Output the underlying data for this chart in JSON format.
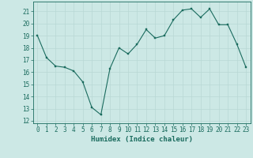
{
  "x": [
    0,
    1,
    2,
    3,
    4,
    5,
    6,
    7,
    8,
    9,
    10,
    11,
    12,
    13,
    14,
    15,
    16,
    17,
    18,
    19,
    20,
    21,
    22,
    23
  ],
  "y": [
    19,
    17.2,
    16.5,
    16.4,
    16.1,
    15.2,
    13.1,
    12.5,
    16.3,
    18.0,
    17.5,
    18.3,
    19.5,
    18.8,
    19.0,
    20.3,
    21.1,
    21.2,
    20.5,
    21.2,
    19.9,
    19.9,
    18.3,
    16.4
  ],
  "xlabel": "Humidex (Indice chaleur)",
  "xlim": [
    -0.5,
    23.5
  ],
  "ylim": [
    11.8,
    21.8
  ],
  "yticks": [
    12,
    13,
    14,
    15,
    16,
    17,
    18,
    19,
    20,
    21
  ],
  "xticks": [
    0,
    1,
    2,
    3,
    4,
    5,
    6,
    7,
    8,
    9,
    10,
    11,
    12,
    13,
    14,
    15,
    16,
    17,
    18,
    19,
    20,
    21,
    22,
    23
  ],
  "line_color": "#1a6b5e",
  "marker_color": "#1a6b5e",
  "bg_color": "#cce8e5",
  "grid_color": "#b8d8d4",
  "tick_color": "#1a6b5e",
  "xlabel_fontsize": 6.5,
  "tick_fontsize": 5.5
}
